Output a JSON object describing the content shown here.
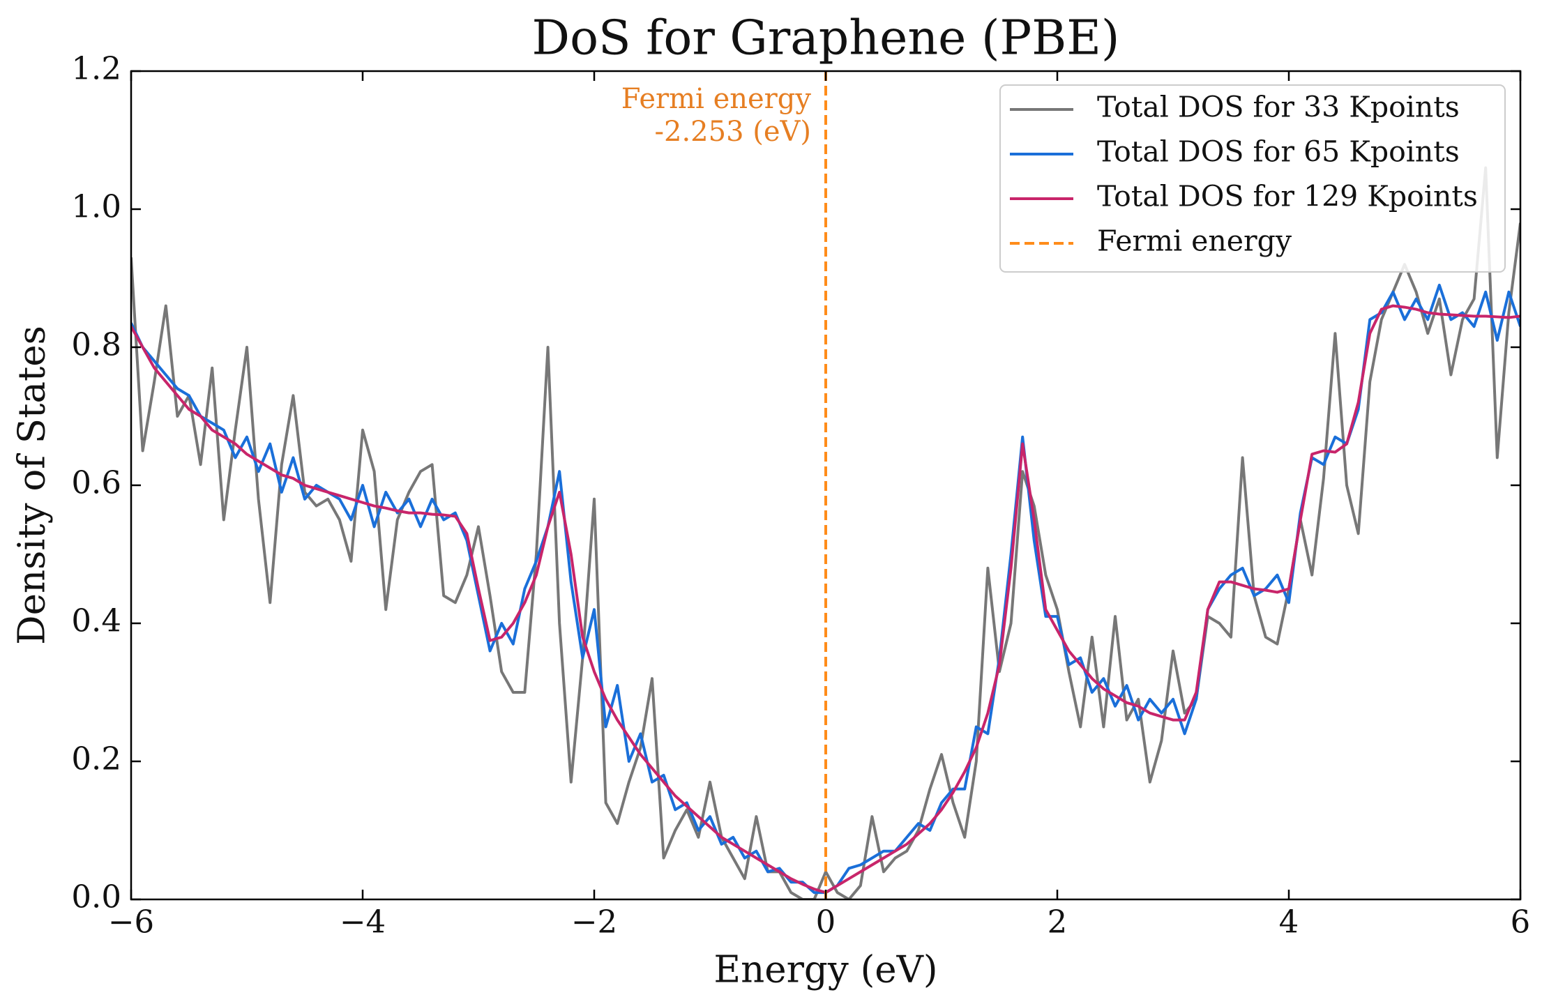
{
  "chart_data": {
    "type": "line",
    "title": "DoS for Graphene (PBE)",
    "x_label": "Energy (eV)",
    "y_label": "Density of States",
    "xlim": [
      -6,
      6
    ],
    "ylim": [
      0,
      1.2
    ],
    "xticks": [
      {
        "value": -6,
        "label": "−6"
      },
      {
        "value": -4,
        "label": "−4"
      },
      {
        "value": -2,
        "label": "−2"
      },
      0,
      2,
      4,
      6
    ],
    "yticks": [
      {
        "value": 0,
        "label": "0.0"
      },
      0.2,
      0.4,
      0.6,
      0.8,
      {
        "value": 1,
        "label": "1.0"
      },
      1.2
    ],
    "grid": false,
    "legend": "upper right",
    "x": [
      -6,
      -5.9,
      -5.8,
      -5.7,
      -5.6,
      -5.5,
      -5.4,
      -5.3,
      -5.2,
      -5.1,
      -5,
      -4.9,
      -4.8,
      -4.7,
      -4.6,
      -4.5,
      -4.4,
      -4.3,
      -4.2,
      -4.1,
      -4,
      -3.9,
      -3.8,
      -3.7,
      -3.6,
      -3.5,
      -3.4,
      -3.3,
      -3.2,
      -3.1,
      -3,
      -2.9,
      -2.8,
      -2.7,
      -2.6,
      -2.5,
      -2.4,
      -2.3,
      -2.2,
      -2.1,
      -2,
      -1.9,
      -1.8,
      -1.7,
      -1.6,
      -1.5,
      -1.4,
      -1.3,
      -1.2,
      -1.1,
      -1,
      -0.9,
      -0.8,
      -0.7,
      -0.6,
      -0.5,
      -0.4,
      -0.3,
      -0.2,
      -0.1,
      0,
      0.1,
      0.2,
      0.3,
      0.4,
      0.5,
      0.6,
      0.7,
      0.8,
      0.9,
      1,
      1.1,
      1.2,
      1.3,
      1.4,
      1.5,
      1.6,
      1.7,
      1.8,
      1.9,
      2,
      2.1,
      2.2,
      2.3,
      2.4,
      2.5,
      2.6,
      2.7,
      2.8,
      2.9,
      3,
      3.1,
      3.2,
      3.3,
      3.4,
      3.5,
      3.6,
      3.7,
      3.8,
      3.9,
      4,
      4.1,
      4.2,
      4.3,
      4.4,
      4.5,
      4.6,
      4.7,
      4.8,
      4.9,
      5,
      5.1,
      5.2,
      5.3,
      5.4,
      5.5,
      5.6,
      5.7,
      5.8,
      5.9,
      6
    ],
    "series": [
      {
        "name": "Total DOS for 33 Kpoints",
        "color": "#777777",
        "values": [
          0.93,
          0.65,
          0.75,
          0.86,
          0.7,
          0.73,
          0.63,
          0.77,
          0.55,
          0.68,
          0.8,
          0.58,
          0.43,
          0.63,
          0.73,
          0.59,
          0.57,
          0.58,
          0.55,
          0.49,
          0.68,
          0.62,
          0.42,
          0.55,
          0.59,
          0.62,
          0.63,
          0.44,
          0.43,
          0.47,
          0.54,
          0.44,
          0.33,
          0.3,
          0.3,
          0.5,
          0.8,
          0.4,
          0.17,
          0.35,
          0.58,
          0.14,
          0.11,
          0.17,
          0.22,
          0.32,
          0.06,
          0.1,
          0.13,
          0.09,
          0.17,
          0.09,
          0.06,
          0.03,
          0.12,
          0.04,
          0.04,
          0.01,
          0,
          0,
          0.04,
          0.01,
          0,
          0.02,
          0.12,
          0.04,
          0.06,
          0.07,
          0.1,
          0.16,
          0.21,
          0.14,
          0.09,
          0.2,
          0.48,
          0.33,
          0.4,
          0.62,
          0.57,
          0.47,
          0.42,
          0.33,
          0.25,
          0.38,
          0.25,
          0.41,
          0.26,
          0.29,
          0.17,
          0.23,
          0.36,
          0.27,
          0.29,
          0.41,
          0.4,
          0.38,
          0.64,
          0.44,
          0.38,
          0.37,
          0.45,
          0.55,
          0.47,
          0.61,
          0.82,
          0.6,
          0.53,
          0.75,
          0.84,
          0.88,
          0.92,
          0.88,
          0.82,
          0.87,
          0.76,
          0.84,
          0.87,
          1.06,
          0.64,
          0.85,
          0.98
        ]
      },
      {
        "name": "Total DOS for 65 Kpoints",
        "color": "#1a6fd9",
        "values": [
          0.835,
          0.8,
          0.78,
          0.76,
          0.74,
          0.73,
          0.7,
          0.69,
          0.68,
          0.64,
          0.67,
          0.62,
          0.66,
          0.59,
          0.64,
          0.58,
          0.6,
          0.59,
          0.58,
          0.55,
          0.6,
          0.54,
          0.59,
          0.56,
          0.58,
          0.54,
          0.58,
          0.55,
          0.56,
          0.52,
          0.44,
          0.36,
          0.4,
          0.37,
          0.45,
          0.49,
          0.54,
          0.62,
          0.46,
          0.35,
          0.42,
          0.25,
          0.31,
          0.2,
          0.24,
          0.17,
          0.18,
          0.13,
          0.14,
          0.1,
          0.12,
          0.08,
          0.09,
          0.06,
          0.07,
          0.04,
          0.045,
          0.025,
          0.025,
          0.01,
          0.01,
          0.02,
          0.045,
          0.05,
          0.06,
          0.07,
          0.07,
          0.09,
          0.11,
          0.1,
          0.14,
          0.16,
          0.16,
          0.25,
          0.24,
          0.35,
          0.5,
          0.67,
          0.52,
          0.41,
          0.41,
          0.34,
          0.35,
          0.3,
          0.32,
          0.28,
          0.31,
          0.26,
          0.29,
          0.27,
          0.29,
          0.24,
          0.29,
          0.42,
          0.45,
          0.47,
          0.48,
          0.44,
          0.45,
          0.47,
          0.43,
          0.56,
          0.64,
          0.63,
          0.67,
          0.66,
          0.71,
          0.84,
          0.85,
          0.88,
          0.84,
          0.87,
          0.84,
          0.89,
          0.84,
          0.85,
          0.83,
          0.88,
          0.81,
          0.88,
          0.83
        ]
      },
      {
        "name": "Total DOS for 129 Kpoints",
        "color": "#c8256a",
        "values": [
          0.83,
          0.8,
          0.77,
          0.75,
          0.73,
          0.71,
          0.7,
          0.68,
          0.67,
          0.66,
          0.645,
          0.635,
          0.625,
          0.615,
          0.61,
          0.6,
          0.595,
          0.59,
          0.585,
          0.58,
          0.575,
          0.57,
          0.567,
          0.563,
          0.56,
          0.56,
          0.558,
          0.557,
          0.555,
          0.53,
          0.45,
          0.375,
          0.38,
          0.4,
          0.43,
          0.47,
          0.54,
          0.59,
          0.5,
          0.38,
          0.33,
          0.29,
          0.26,
          0.235,
          0.21,
          0.19,
          0.17,
          0.15,
          0.135,
          0.12,
          0.105,
          0.09,
          0.08,
          0.07,
          0.06,
          0.05,
          0.04,
          0.03,
          0.022,
          0.015,
          0.01,
          0.02,
          0.03,
          0.04,
          0.05,
          0.06,
          0.07,
          0.08,
          0.095,
          0.11,
          0.13,
          0.155,
          0.185,
          0.22,
          0.27,
          0.34,
          0.48,
          0.66,
          0.55,
          0.42,
          0.39,
          0.36,
          0.34,
          0.32,
          0.305,
          0.295,
          0.285,
          0.28,
          0.27,
          0.265,
          0.26,
          0.26,
          0.3,
          0.42,
          0.46,
          0.46,
          0.455,
          0.45,
          0.448,
          0.445,
          0.45,
          0.55,
          0.645,
          0.65,
          0.648,
          0.66,
          0.72,
          0.82,
          0.855,
          0.86,
          0.858,
          0.855,
          0.85,
          0.848,
          0.847,
          0.846,
          0.845,
          0.845,
          0.844,
          0.843,
          0.845
        ]
      }
    ],
    "vline": {
      "name": "Fermi energy",
      "x": 0,
      "color": "#ff8c1a",
      "dashed": true
    },
    "annotation": {
      "lines": [
        "Fermi energy",
        "-2.253 (eV)"
      ],
      "color": "#e67e22"
    }
  }
}
